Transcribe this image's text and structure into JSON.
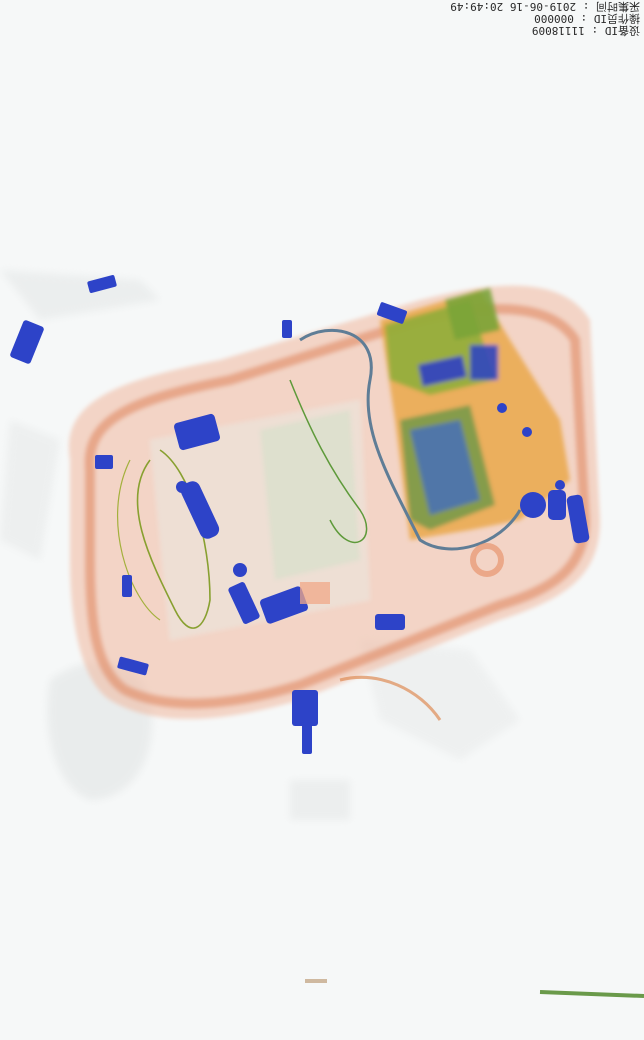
{
  "header": {
    "device_line": "设备ID : 11118009",
    "operator_line": "操作员ID : 000000",
    "time_line": "采集时间 : 2019-06-16 20:49:49"
  }
}
